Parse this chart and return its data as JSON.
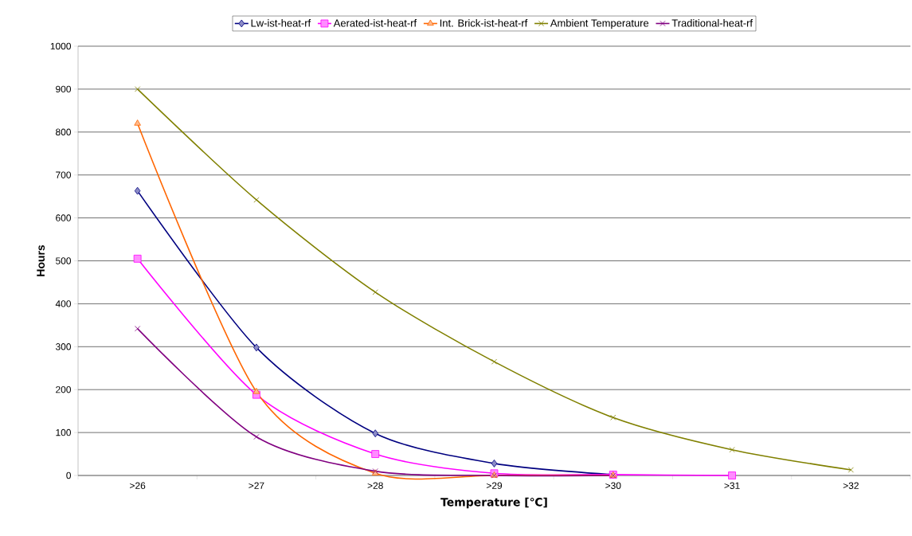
{
  "chart_data": {
    "type": "line",
    "xlabel": "Temperature [℃]",
    "ylabel": "Hours",
    "categories": [
      ">26",
      ">27",
      ">28",
      ">29",
      ">30",
      ">31",
      ">32"
    ],
    "ylim": [
      0,
      1000
    ],
    "yticks": [
      0,
      100,
      200,
      300,
      400,
      500,
      600,
      700,
      800,
      900,
      1000
    ],
    "grid": "y",
    "legend": "top",
    "line_style": "solid",
    "series": [
      {
        "name": "Lw-ist-heat-rf",
        "color": "#000080",
        "marker": "diamond",
        "values": [
          663,
          298,
          98,
          28,
          2,
          null,
          null
        ]
      },
      {
        "name": "Aerated-ist-heat-rf",
        "color": "#ff00ff",
        "marker": "square",
        "values": [
          505,
          188,
          50,
          5,
          2,
          0,
          null
        ]
      },
      {
        "name": "Int. Brick-ist-heat-rf",
        "color": "#ff6600",
        "marker": "triangle",
        "values": [
          820,
          195,
          5,
          0,
          0,
          null,
          null
        ]
      },
      {
        "name": "Ambient Temperature",
        "color": "#808000",
        "marker": "cross",
        "values": [
          900,
          642,
          427,
          265,
          135,
          60,
          13
        ]
      },
      {
        "name": "Traditional-heat-rf",
        "color": "#800080",
        "marker": "cross",
        "values": [
          342,
          90,
          10,
          0,
          0,
          null,
          null
        ]
      }
    ]
  }
}
